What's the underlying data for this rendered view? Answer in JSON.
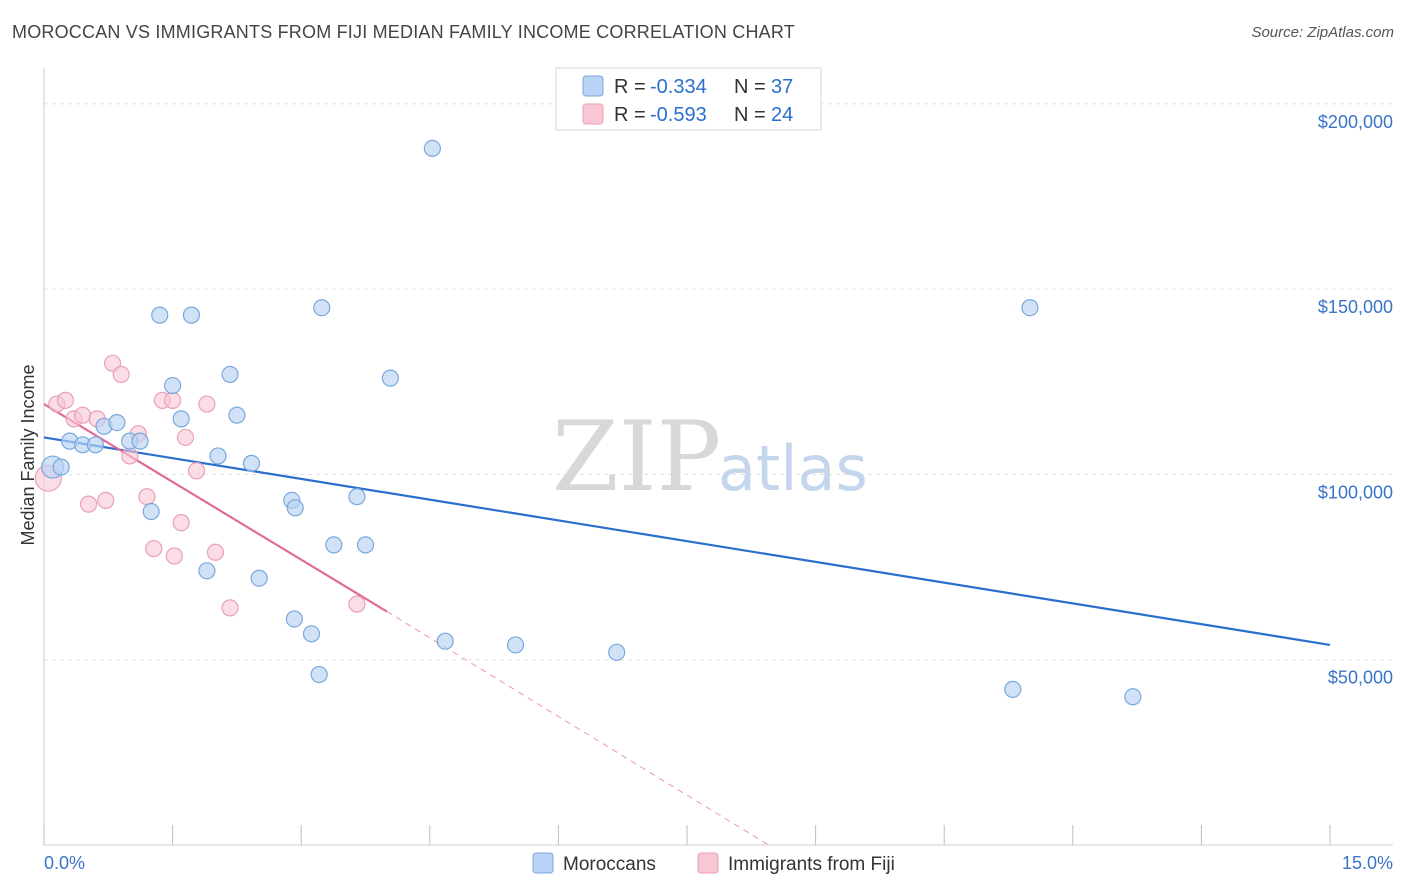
{
  "header": {
    "title": "MOROCCAN VS IMMIGRANTS FROM FIJI MEDIAN FAMILY INCOME CORRELATION CHART",
    "source": "Source: ZipAtlas.com"
  },
  "watermark": {
    "zip": "ZIP",
    "atlas": "atlas"
  },
  "colors": {
    "blue_fill": "#b8d3f3",
    "blue_stroke": "#7aa7dd",
    "blue_line": "#2a6fce",
    "pink_fill": "#f9c6d4",
    "pink_stroke": "#eaa0b7",
    "pink_line": "#e06b98",
    "grid": "#e2e2e2",
    "tick_label": "#3a74c9"
  },
  "legend": {
    "rows": [
      {
        "r_label": "R =",
        "r_value": "-0.334",
        "n_label": "N =",
        "n_value": "37",
        "series": "Moroccans"
      },
      {
        "r_label": "R =",
        "r_value": "-0.593",
        "n_label": "N =",
        "n_value": "24",
        "series": "Immigrants from Fiji"
      }
    ]
  },
  "bottom_legend": [
    "Moroccans",
    "Immigrants from Fiji"
  ],
  "chart_data": {
    "type": "scatter",
    "title": "MOROCCAN VS IMMIGRANTS FROM FIJI MEDIAN FAMILY INCOME CORRELATION CHART",
    "xlabel": "",
    "ylabel": "Median Family Income",
    "xlim": [
      0,
      15
    ],
    "ylim": [
      0,
      207000
    ],
    "x_tick_labels": [
      "0.0%",
      "15.0%"
    ],
    "y_ticks": [
      50000,
      100000,
      150000,
      200000
    ],
    "y_tick_labels": [
      "$50,000",
      "$100,000",
      "$150,000",
      "$200,000"
    ],
    "grid": true,
    "legend_position": "top-center",
    "series": [
      {
        "name": "Moroccans",
        "r": -0.334,
        "n": 37,
        "trend": {
          "x0": 0.0,
          "y0": 110000,
          "x1": 15.0,
          "y1": 54000
        },
        "points": [
          {
            "x": 0.1,
            "y": 102000
          },
          {
            "x": 0.2,
            "y": 102000
          },
          {
            "x": 0.3,
            "y": 109000
          },
          {
            "x": 0.45,
            "y": 108000
          },
          {
            "x": 0.6,
            "y": 108000
          },
          {
            "x": 0.7,
            "y": 113000
          },
          {
            "x": 0.85,
            "y": 114000
          },
          {
            "x": 1.0,
            "y": 109000
          },
          {
            "x": 1.12,
            "y": 109000
          },
          {
            "x": 1.25,
            "y": 90000
          },
          {
            "x": 1.35,
            "y": 143000
          },
          {
            "x": 1.5,
            "y": 124000
          },
          {
            "x": 1.6,
            "y": 115000
          },
          {
            "x": 1.72,
            "y": 143000
          },
          {
            "x": 1.9,
            "y": 74000
          },
          {
            "x": 2.03,
            "y": 105000
          },
          {
            "x": 2.17,
            "y": 127000
          },
          {
            "x": 2.25,
            "y": 116000
          },
          {
            "x": 2.42,
            "y": 103000
          },
          {
            "x": 2.51,
            "y": 72000
          },
          {
            "x": 2.89,
            "y": 93000
          },
          {
            "x": 2.93,
            "y": 91000
          },
          {
            "x": 2.92,
            "y": 61000
          },
          {
            "x": 3.12,
            "y": 57000
          },
          {
            "x": 3.21,
            "y": 46000
          },
          {
            "x": 3.24,
            "y": 145000
          },
          {
            "x": 3.38,
            "y": 81000
          },
          {
            "x": 3.65,
            "y": 94000
          },
          {
            "x": 3.75,
            "y": 81000
          },
          {
            "x": 4.04,
            "y": 126000
          },
          {
            "x": 4.53,
            "y": 188000
          },
          {
            "x": 4.68,
            "y": 55000
          },
          {
            "x": 5.5,
            "y": 54000
          },
          {
            "x": 6.68,
            "y": 52000
          },
          {
            "x": 11.3,
            "y": 42000
          },
          {
            "x": 11.5,
            "y": 145000
          },
          {
            "x": 12.7,
            "y": 40000
          }
        ]
      },
      {
        "name": "Immigrants from Fiji",
        "r": -0.593,
        "n": 24,
        "trend": {
          "x0": 0.0,
          "y0": 119000,
          "x1": 4.0,
          "y1": 63000
        },
        "trend_extension": {
          "x0": 4.0,
          "y0": 63000,
          "x1": 8.45,
          "y1": 0
        },
        "points": [
          {
            "x": 0.05,
            "y": 99000
          },
          {
            "x": 0.15,
            "y": 119000
          },
          {
            "x": 0.25,
            "y": 120000
          },
          {
            "x": 0.35,
            "y": 115000
          },
          {
            "x": 0.45,
            "y": 116000
          },
          {
            "x": 0.52,
            "y": 92000
          },
          {
            "x": 0.62,
            "y": 115000
          },
          {
            "x": 0.72,
            "y": 93000
          },
          {
            "x": 0.8,
            "y": 130000
          },
          {
            "x": 0.9,
            "y": 127000
          },
          {
            "x": 1.0,
            "y": 105000
          },
          {
            "x": 1.1,
            "y": 111000
          },
          {
            "x": 1.2,
            "y": 94000
          },
          {
            "x": 1.28,
            "y": 80000
          },
          {
            "x": 1.38,
            "y": 120000
          },
          {
            "x": 1.5,
            "y": 120000
          },
          {
            "x": 1.52,
            "y": 78000
          },
          {
            "x": 1.6,
            "y": 87000
          },
          {
            "x": 1.65,
            "y": 110000
          },
          {
            "x": 1.78,
            "y": 101000
          },
          {
            "x": 1.9,
            "y": 119000
          },
          {
            "x": 2.0,
            "y": 79000
          },
          {
            "x": 2.17,
            "y": 64000
          },
          {
            "x": 3.65,
            "y": 65000
          }
        ]
      }
    ]
  }
}
